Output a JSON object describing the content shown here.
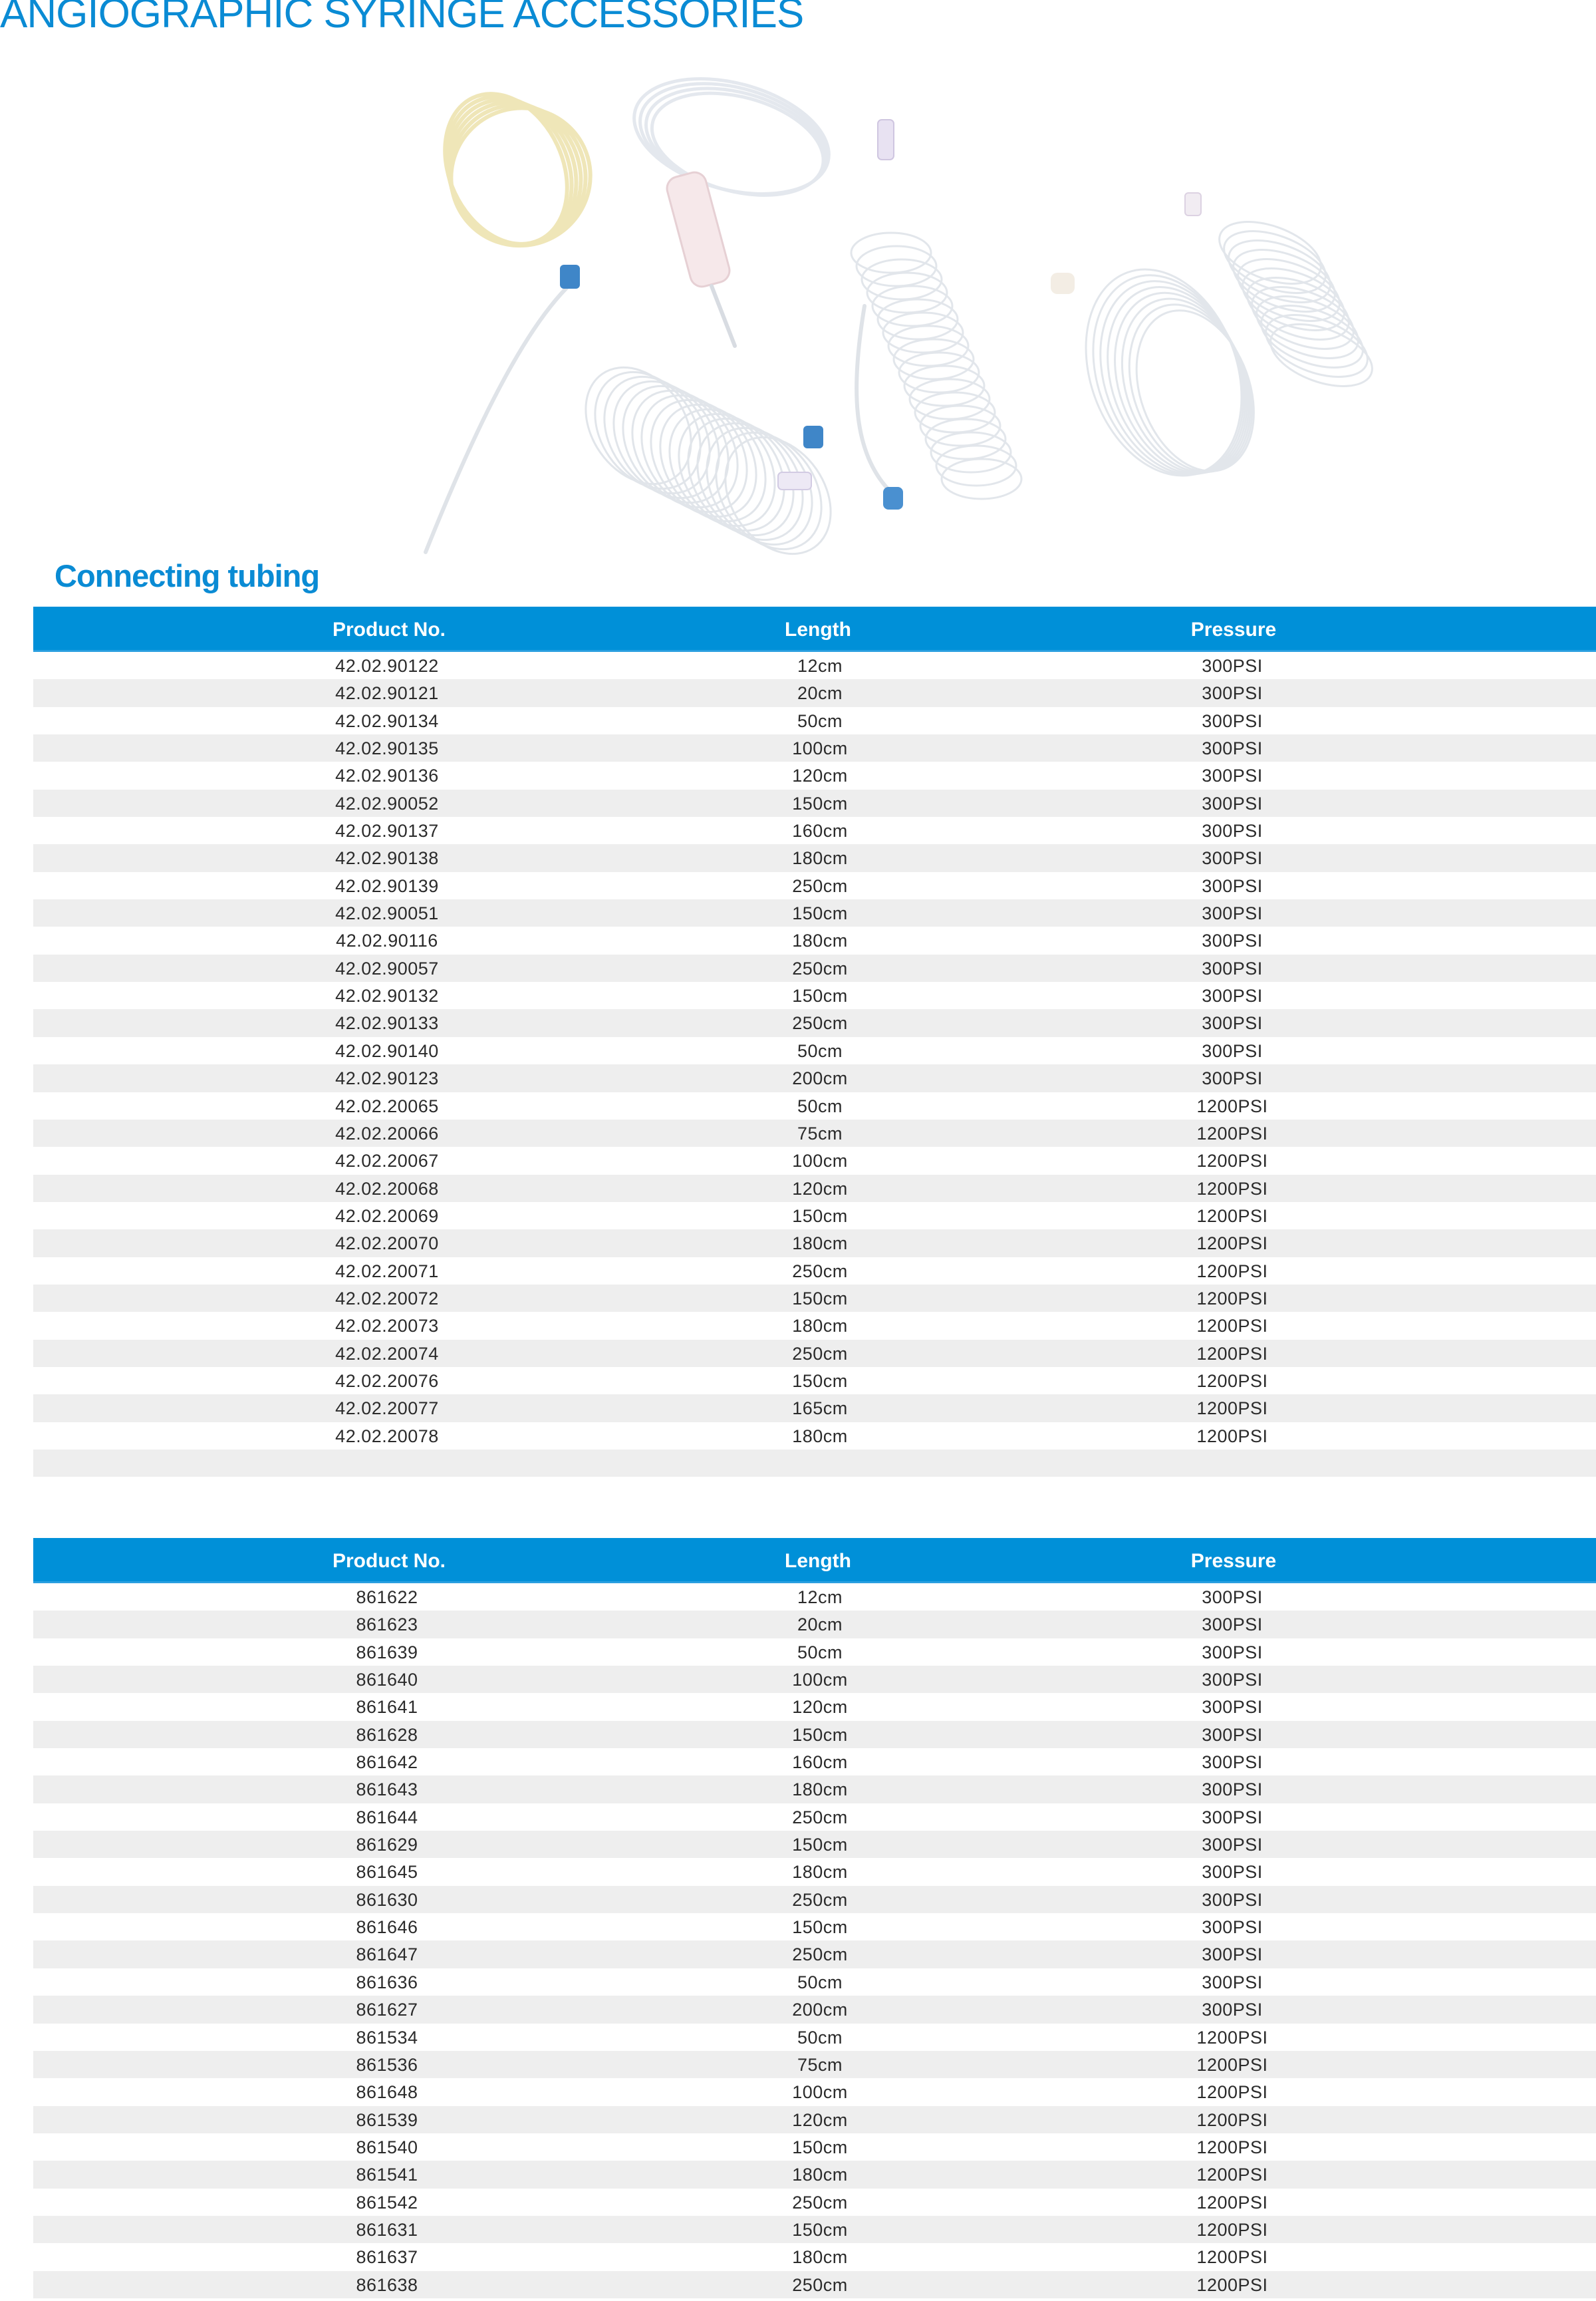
{
  "page": {
    "title": "ANGIOGRAPHIC SYRINGE ACCESSORIES",
    "section_title": "Connecting tubing",
    "accent_color": "#0090d8",
    "stripe_color": "#eeeeee"
  },
  "tables": [
    {
      "headers": [
        "Product No.",
        "Length",
        "Pressure"
      ],
      "rows": [
        [
          "42.02.90122",
          "12cm",
          "300PSI"
        ],
        [
          "42.02.90121",
          "20cm",
          "300PSI"
        ],
        [
          "42.02.90134",
          "50cm",
          "300PSI"
        ],
        [
          "42.02.90135",
          "100cm",
          "300PSI"
        ],
        [
          "42.02.90136",
          "120cm",
          "300PSI"
        ],
        [
          "42.02.90052",
          "150cm",
          "300PSI"
        ],
        [
          "42.02.90137",
          "160cm",
          "300PSI"
        ],
        [
          "42.02.90138",
          "180cm",
          "300PSI"
        ],
        [
          "42.02.90139",
          "250cm",
          "300PSI"
        ],
        [
          "42.02.90051",
          "150cm",
          "300PSI"
        ],
        [
          "42.02.90116",
          "180cm",
          "300PSI"
        ],
        [
          "42.02.90057",
          "250cm",
          "300PSI"
        ],
        [
          "42.02.90132",
          "150cm",
          "300PSI"
        ],
        [
          "42.02.90133",
          "250cm",
          "300PSI"
        ],
        [
          "42.02.90140",
          "50cm",
          "300PSI"
        ],
        [
          "42.02.90123",
          "200cm",
          "300PSI"
        ],
        [
          "42.02.20065",
          "50cm",
          "1200PSI"
        ],
        [
          "42.02.20066",
          "75cm",
          "1200PSI"
        ],
        [
          "42.02.20067",
          "100cm",
          "1200PSI"
        ],
        [
          "42.02.20068",
          "120cm",
          "1200PSI"
        ],
        [
          "42.02.20069",
          "150cm",
          "1200PSI"
        ],
        [
          "42.02.20070",
          "180cm",
          "1200PSI"
        ],
        [
          "42.02.20071",
          "250cm",
          "1200PSI"
        ],
        [
          "42.02.20072",
          "150cm",
          "1200PSI"
        ],
        [
          "42.02.20073",
          "180cm",
          "1200PSI"
        ],
        [
          "42.02.20074",
          "250cm",
          "1200PSI"
        ],
        [
          "42.02.20076",
          "150cm",
          "1200PSI"
        ],
        [
          "42.02.20077",
          "165cm",
          "1200PSI"
        ],
        [
          "42.02.20078",
          "180cm",
          "1200PSI"
        ],
        [
          "",
          "",
          ""
        ]
      ]
    },
    {
      "headers": [
        "Product No.",
        "Length",
        "Pressure"
      ],
      "rows": [
        [
          "861622",
          "12cm",
          "300PSI"
        ],
        [
          "861623",
          "20cm",
          "300PSI"
        ],
        [
          "861639",
          "50cm",
          "300PSI"
        ],
        [
          "861640",
          "100cm",
          "300PSI"
        ],
        [
          "861641",
          "120cm",
          "300PSI"
        ],
        [
          "861628",
          "150cm",
          "300PSI"
        ],
        [
          "861642",
          "160cm",
          "300PSI"
        ],
        [
          "861643",
          "180cm",
          "300PSI"
        ],
        [
          "861644",
          "250cm",
          "300PSI"
        ],
        [
          "861629",
          "150cm",
          "300PSI"
        ],
        [
          "861645",
          "180cm",
          "300PSI"
        ],
        [
          "861630",
          "250cm",
          "300PSI"
        ],
        [
          "861646",
          "150cm",
          "300PSI"
        ],
        [
          "861647",
          "250cm",
          "300PSI"
        ],
        [
          "861636",
          "50cm",
          "300PSI"
        ],
        [
          "861627",
          "200cm",
          "300PSI"
        ],
        [
          "861534",
          "50cm",
          "1200PSI"
        ],
        [
          "861536",
          "75cm",
          "1200PSI"
        ],
        [
          "861648",
          "100cm",
          "1200PSI"
        ],
        [
          "861539",
          "120cm",
          "1200PSI"
        ],
        [
          "861540",
          "150cm",
          "1200PSI"
        ],
        [
          "861541",
          "180cm",
          "1200PSI"
        ],
        [
          "861542",
          "250cm",
          "1200PSI"
        ],
        [
          "861631",
          "150cm",
          "1200PSI"
        ],
        [
          "861637",
          "180cm",
          "1200PSI"
        ],
        [
          "861638",
          "250cm",
          "1200PSI"
        ]
      ]
    }
  ]
}
